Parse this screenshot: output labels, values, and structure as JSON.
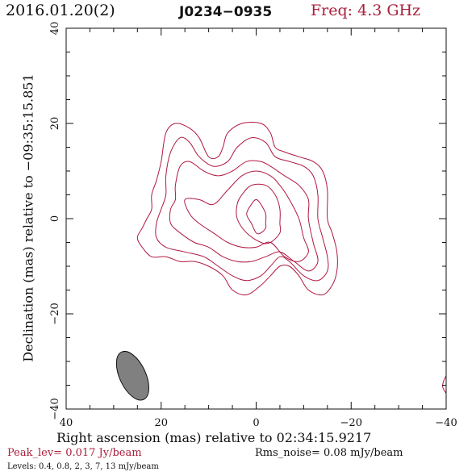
{
  "header": {
    "date": "2016.01.20(2)",
    "source": "J0234−0935",
    "frequency": "Freq: 4.3 GHz"
  },
  "chart_data": {
    "type": "contour",
    "xlabel": "Right ascension (mas) relative to 02:34:15.9217",
    "ylabel": "Declination (mas) relative to −09:35:15.851",
    "xlim": [
      40,
      -40
    ],
    "ylim": [
      -40,
      40
    ],
    "xticks": [
      40,
      20,
      0,
      -20,
      -40
    ],
    "yticks": [
      -40,
      -20,
      0,
      20,
      40
    ],
    "xtick_labels": [
      "40",
      "20",
      "0",
      "−20",
      "−40"
    ],
    "ytick_labels": [
      "−40",
      "−20",
      "0",
      "20",
      "40"
    ],
    "contour_levels_mJy_per_beam": [
      0.4,
      0.8,
      2,
      3,
      7,
      13
    ],
    "contour_color": "#b01840",
    "beam": {
      "center": [
        26,
        -33
      ],
      "major_mas": 11,
      "minor_mas": 5.5,
      "pa_deg": -25,
      "fill": "#808080"
    },
    "contours": [
      {
        "level": 0.4,
        "points": [
          [
            21,
            8
          ],
          [
            20,
            12
          ],
          [
            19,
            18
          ],
          [
            17,
            20
          ],
          [
            14,
            19
          ],
          [
            12,
            17
          ],
          [
            10,
            13
          ],
          [
            8,
            13
          ],
          [
            7,
            15
          ],
          [
            6,
            18
          ],
          [
            3,
            20
          ],
          [
            -1,
            20
          ],
          [
            -3,
            18
          ],
          [
            -4,
            15
          ],
          [
            -6,
            14
          ],
          [
            -9,
            13
          ],
          [
            -12,
            12
          ],
          [
            -14,
            10
          ],
          [
            -15,
            6
          ],
          [
            -15,
            0
          ],
          [
            -16,
            -3
          ],
          [
            -17,
            -7
          ],
          [
            -17,
            -11
          ],
          [
            -16,
            -14
          ],
          [
            -14,
            -16
          ],
          [
            -11,
            -15
          ],
          [
            -9,
            -12
          ],
          [
            -7,
            -10
          ],
          [
            -5,
            -10
          ],
          [
            -3,
            -12
          ],
          [
            -1,
            -14
          ],
          [
            2,
            -16
          ],
          [
            5,
            -15
          ],
          [
            7,
            -12
          ],
          [
            10,
            -10
          ],
          [
            13,
            -9
          ],
          [
            16,
            -9
          ],
          [
            19,
            -8
          ],
          [
            22,
            -8
          ],
          [
            24,
            -6
          ],
          [
            25,
            -4
          ],
          [
            24,
            -2
          ],
          [
            23,
            0
          ],
          [
            22,
            2
          ],
          [
            22,
            5
          ]
        ]
      },
      {
        "level": 0.8,
        "points": [
          [
            19,
            9
          ],
          [
            18,
            14
          ],
          [
            16,
            17
          ],
          [
            14,
            16
          ],
          [
            12,
            13
          ],
          [
            9,
            11
          ],
          [
            6,
            12
          ],
          [
            4,
            15
          ],
          [
            1,
            17
          ],
          [
            -2,
            16
          ],
          [
            -4,
            13
          ],
          [
            -7,
            12
          ],
          [
            -10,
            11
          ],
          [
            -12,
            9
          ],
          [
            -13,
            5
          ],
          [
            -13,
            0
          ],
          [
            -14,
            -4
          ],
          [
            -15,
            -8
          ],
          [
            -15,
            -11
          ],
          [
            -13,
            -13
          ],
          [
            -10,
            -12
          ],
          [
            -7,
            -9
          ],
          [
            -5,
            -8
          ],
          [
            -3,
            -10
          ],
          [
            -1,
            -12
          ],
          [
            2,
            -13
          ],
          [
            5,
            -12
          ],
          [
            8,
            -10
          ],
          [
            11,
            -8
          ],
          [
            15,
            -7
          ],
          [
            19,
            -6
          ],
          [
            21,
            -4
          ],
          [
            21,
            -1
          ],
          [
            20,
            2
          ],
          [
            19,
            5
          ]
        ]
      },
      {
        "level": 2,
        "points": [
          [
            17,
            7
          ],
          [
            16,
            11
          ],
          [
            14,
            12
          ],
          [
            11,
            10
          ],
          [
            8,
            9
          ],
          [
            5,
            10
          ],
          [
            2,
            12
          ],
          [
            -1,
            12
          ],
          [
            -3,
            11
          ],
          [
            -6,
            9
          ],
          [
            -9,
            7
          ],
          [
            -11,
            4
          ],
          [
            -11,
            0
          ],
          [
            -12,
            -5
          ],
          [
            -13,
            -9
          ],
          [
            -11,
            -11
          ],
          [
            -8,
            -9
          ],
          [
            -5,
            -7
          ],
          [
            -2,
            -8
          ],
          [
            1,
            -9
          ],
          [
            4,
            -9
          ],
          [
            7,
            -8
          ],
          [
            10,
            -6
          ],
          [
            13,
            -5
          ],
          [
            16,
            -3
          ],
          [
            18,
            -1
          ],
          [
            18,
            2
          ],
          [
            17,
            4
          ]
        ]
      },
      {
        "level": 3,
        "points": [
          [
            15,
            4
          ],
          [
            12,
            4
          ],
          [
            9,
            3
          ],
          [
            6,
            6
          ],
          [
            3,
            9
          ],
          [
            0,
            10
          ],
          [
            -3,
            9
          ],
          [
            -5,
            7
          ],
          [
            -7,
            4
          ],
          [
            -9,
            0
          ],
          [
            -10,
            -4
          ],
          [
            -11,
            -7
          ],
          [
            -9,
            -9
          ],
          [
            -6,
            -8
          ],
          [
            -3,
            -5
          ],
          [
            0,
            -6
          ],
          [
            3,
            -6
          ],
          [
            6,
            -5
          ],
          [
            9,
            -3
          ],
          [
            12,
            -1
          ],
          [
            14,
            1
          ]
        ]
      },
      {
        "level": 7,
        "points": [
          [
            3,
            5
          ],
          [
            1,
            7
          ],
          [
            -2,
            7
          ],
          [
            -4,
            5
          ],
          [
            -5,
            2
          ],
          [
            -5,
            -1
          ],
          [
            -5,
            -3
          ],
          [
            -3,
            -5
          ],
          [
            -1,
            -5
          ],
          [
            2,
            -3
          ],
          [
            4,
            0
          ],
          [
            4,
            3
          ]
        ]
      },
      {
        "level": 13,
        "points": [
          [
            1,
            3
          ],
          [
            0,
            4
          ],
          [
            -1,
            3
          ],
          [
            -2,
            1
          ],
          [
            -2,
            -1
          ],
          [
            -2,
            -2
          ],
          [
            -1,
            -3
          ],
          [
            0,
            -3
          ],
          [
            1,
            -1
          ],
          [
            2,
            1
          ]
        ]
      },
      {
        "level": 0.4,
        "points": [
          [
            -40,
            -33
          ],
          [
            -39.4,
            -34.3
          ],
          [
            -39.3,
            -35.5
          ],
          [
            -40,
            -36.7
          ]
        ]
      }
    ]
  },
  "footer": {
    "peak": "Peak_lev=  0.017 Jy/beam",
    "rms": "Rms_noise= 0.08 mJy/beam",
    "levels": "Levels: 0.4, 0.8,   2,   3,   7,  13 mJy/beam"
  }
}
